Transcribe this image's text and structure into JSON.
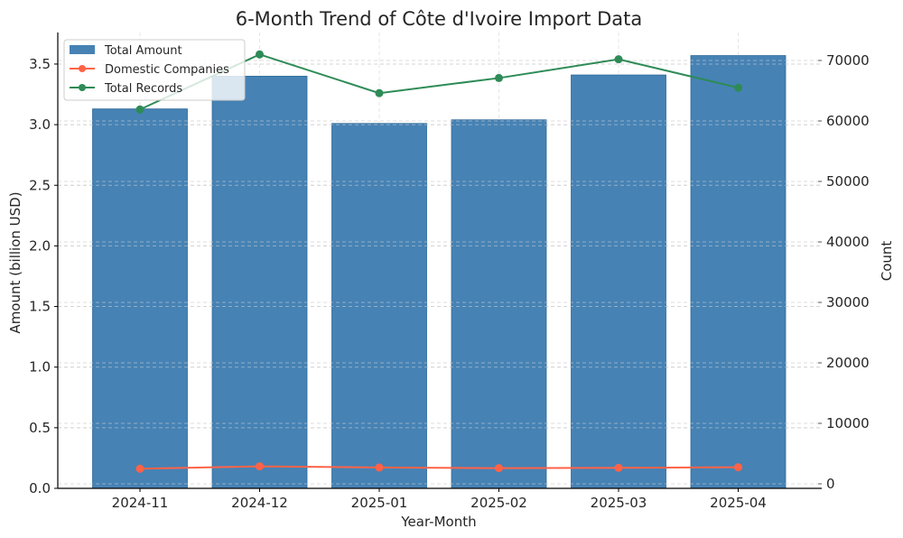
{
  "chart_data": {
    "type": "bar",
    "title": "6-Month Trend of Côte d'Ivoire Import Data",
    "xlabel": "Year-Month",
    "ylabel": "Amount (billion USD)",
    "y2label": "Count",
    "categories": [
      "2024-11",
      "2024-12",
      "2025-01",
      "2025-02",
      "2025-03",
      "2025-04"
    ],
    "ylim": [
      0,
      3.75
    ],
    "y2lim": [
      0,
      75700
    ],
    "yticks": [
      0.0,
      0.5,
      1.0,
      1.5,
      2.0,
      2.5,
      3.0,
      3.5
    ],
    "ytick_labels": [
      "0.0",
      "0.5",
      "1.0",
      "1.5",
      "2.0",
      "2.5",
      "3.0",
      "3.5"
    ],
    "y2ticks": [
      0,
      10000,
      20000,
      30000,
      40000,
      50000,
      60000,
      70000
    ],
    "y2tick_labels": [
      "0",
      "10000",
      "20000",
      "30000",
      "40000",
      "50000",
      "60000",
      "70000"
    ],
    "grid": true,
    "legend_position": "top-left",
    "series": [
      {
        "name": "Total Amount",
        "type": "bar",
        "axis": "left",
        "color": "#4682b4",
        "values": [
          3.13,
          3.4,
          3.01,
          3.04,
          3.41,
          3.57
        ]
      },
      {
        "name": "Domestic Companies",
        "type": "line",
        "axis": "right",
        "color": "#ff6347",
        "values": [
          2500,
          2900,
          2700,
          2600,
          2650,
          2750
        ]
      },
      {
        "name": "Total Records",
        "type": "line",
        "axis": "right",
        "color": "#2e8b57",
        "values": [
          61900,
          71000,
          64600,
          67100,
          70200,
          65500
        ]
      }
    ],
    "ylabel_color": "#4682b4"
  }
}
